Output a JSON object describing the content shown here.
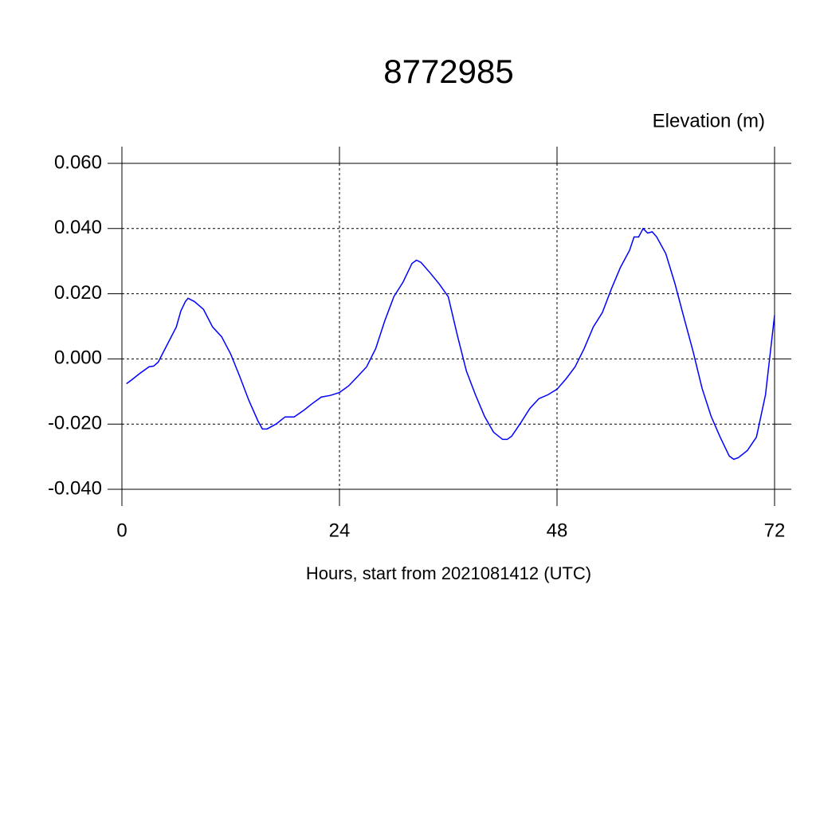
{
  "chart_data": {
    "type": "line",
    "title": "8772985",
    "subtitle": "Elevation (m)",
    "xlabel": "Hours, start from 2021081412 (UTC)",
    "xlim": [
      0,
      72
    ],
    "xticks": [
      0,
      24,
      48,
      72
    ],
    "ylim": [
      -0.04,
      0.06
    ],
    "yticks": [
      {
        "value": -0.04,
        "label": "-0.040"
      },
      {
        "value": -0.02,
        "label": "-0.020"
      },
      {
        "value": 0,
        "label": "0.000"
      },
      {
        "value": 0.02,
        "label": "0.020"
      },
      {
        "value": 0.04,
        "label": "0.040"
      },
      {
        "value": 0.06,
        "label": "0.060"
      }
    ],
    "grid": true,
    "x": [
      0.5,
      1,
      2,
      3,
      3.5,
      4,
      5,
      6,
      6.5,
      7,
      7.3,
      8,
      9,
      10,
      11,
      12,
      13,
      14,
      15,
      15.5,
      16,
      17,
      18,
      19,
      20,
      21,
      22,
      23,
      24,
      25,
      26,
      27,
      28,
      29,
      30,
      31,
      32,
      32.5,
      33,
      34,
      35,
      36,
      37,
      38,
      39,
      40,
      41,
      42,
      42.5,
      43,
      44,
      45,
      46,
      47,
      48,
      49,
      50,
      51,
      52,
      53,
      54,
      55,
      56,
      56.5,
      57,
      57.5,
      58,
      58.5,
      59,
      60,
      61,
      62,
      63,
      64,
      65,
      66,
      67,
      67.5,
      68,
      69,
      70,
      71,
      72
    ],
    "series": [
      {
        "color": "#0000ff",
        "values": [
          -0.0076,
          -0.0066,
          -0.0044,
          -0.0024,
          -0.0022,
          -0.001,
          0.0044,
          0.0098,
          0.0147,
          0.0176,
          0.0186,
          0.0176,
          0.0152,
          0.0098,
          0.0068,
          0.0015,
          -0.0054,
          -0.0127,
          -0.019,
          -0.0215,
          -0.0215,
          -0.02,
          -0.0178,
          -0.0178,
          -0.0159,
          -0.0137,
          -0.0117,
          -0.0112,
          -0.0103,
          -0.0083,
          -0.0054,
          -0.0024,
          0.0032,
          0.0117,
          0.0191,
          0.0235,
          0.0293,
          0.0303,
          0.0296,
          0.0264,
          0.023,
          0.0191,
          0.0073,
          -0.0037,
          -0.011,
          -0.0176,
          -0.0225,
          -0.0247,
          -0.0247,
          -0.0237,
          -0.0196,
          -0.0152,
          -0.0122,
          -0.011,
          -0.0093,
          -0.0061,
          -0.0024,
          0.0032,
          0.0098,
          0.0142,
          0.0215,
          0.0281,
          0.0333,
          0.0374,
          0.0374,
          0.04,
          0.0386,
          0.039,
          0.0374,
          0.0323,
          0.0232,
          0.0127,
          0.0024,
          -0.009,
          -0.0176,
          -0.024,
          -0.0298,
          -0.0308,
          -0.0303,
          -0.0281,
          -0.024,
          -0.011,
          0.0134
        ]
      }
    ]
  }
}
